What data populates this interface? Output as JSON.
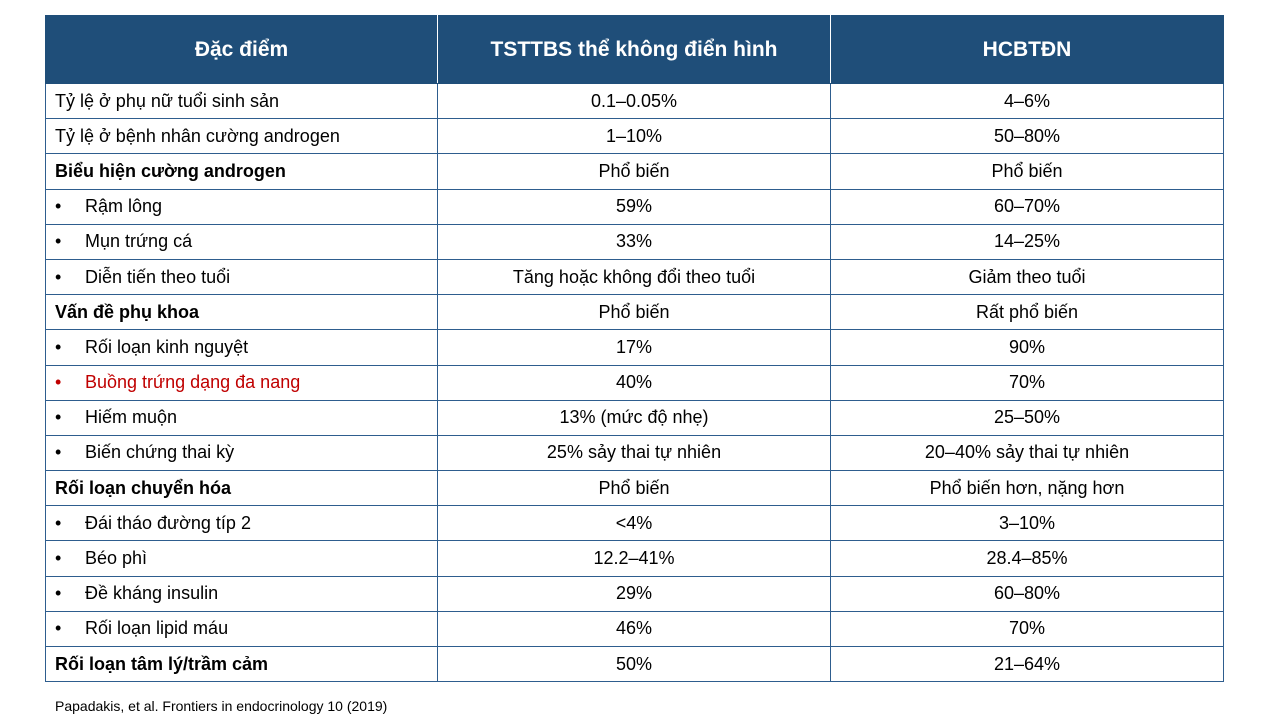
{
  "table": {
    "headers": [
      "Đặc điểm",
      "TSTTBS thể không điển hình",
      "HCBTĐN"
    ],
    "rows": [
      {
        "feature": "Tỷ lệ ở phụ nữ tuổi sinh sản",
        "a": "0.1–0.05%",
        "b": "4–6%",
        "style": "plain"
      },
      {
        "feature": "Tỷ lệ ở bệnh nhân cường androgen",
        "a": "1–10%",
        "b": "50–80%",
        "style": "plain"
      },
      {
        "feature": "Biểu hiện cường androgen",
        "a": "Phổ biến",
        "b": "Phổ biến",
        "style": "bold"
      },
      {
        "feature": "Rậm lông",
        "a": "59%",
        "b": "60–70%",
        "style": "sub"
      },
      {
        "feature": "Mụn trứng cá",
        "a": "33%",
        "b": "14–25%",
        "style": "sub"
      },
      {
        "feature": "Diễn tiến theo tuổi",
        "a": "Tăng hoặc không đổi theo tuổi",
        "b": "Giảm theo tuổi",
        "style": "sub"
      },
      {
        "feature": "Vấn đề phụ khoa",
        "a": "Phổ biến",
        "b": "Rất phổ biến",
        "style": "bold"
      },
      {
        "feature": "Rối loạn kinh nguyệt",
        "a": "17%",
        "b": "90%",
        "style": "sub"
      },
      {
        "feature": "Buồng trứng dạng đa nang",
        "a": "40%",
        "b": "70%",
        "style": "sub-red"
      },
      {
        "feature": "Hiếm muộn",
        "a": "13% (mức độ nhẹ)",
        "b": "25–50%",
        "style": "sub"
      },
      {
        "feature": "Biến chứng thai kỳ",
        "a": "25% sảy thai tự nhiên",
        "b": "20–40% sảy thai tự nhiên",
        "style": "sub"
      },
      {
        "feature": "Rối loạn chuyển hóa",
        "a": "Phổ biến",
        "b": "Phổ biến hơn, nặng hơn",
        "style": "bold"
      },
      {
        "feature": "Đái tháo đường típ 2",
        "a": "<4%",
        "b": "3–10%",
        "style": "sub"
      },
      {
        "feature": "Béo phì",
        "a": "12.2–41%",
        "b": "28.4–85%",
        "style": "sub"
      },
      {
        "feature": "Đề kháng insulin",
        "a": "29%",
        "b": "60–80%",
        "style": "sub"
      },
      {
        "feature": "Rối loạn lipid máu",
        "a": "46%",
        "b": "70%",
        "style": "sub"
      },
      {
        "feature": "Rối loạn tâm lý/trầm cảm",
        "a": "50%",
        "b": "21–64%",
        "style": "bold"
      }
    ]
  },
  "bullet_symbol": "•",
  "citation": "Papadakis, et al. Frontiers in endocrinology 10 (2019)",
  "colors": {
    "header_bg": "#1f4e79",
    "header_text": "#ffffff",
    "border": "#2e5d8e",
    "highlight_red": "#c00000"
  }
}
